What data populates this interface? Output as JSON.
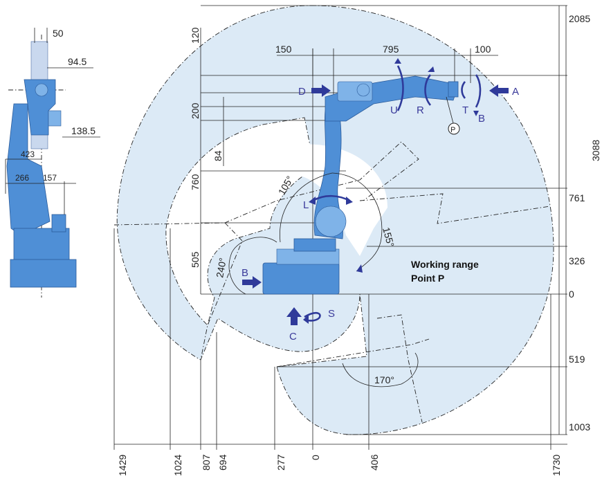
{
  "working_range": {
    "line1": "Working range",
    "line2": "Point P"
  },
  "point_label": "P",
  "axes": {
    "S": "S",
    "L": "L",
    "U": "U",
    "R": "R",
    "B": "B",
    "T": "T"
  },
  "view_labels": {
    "A": "A",
    "B": "B",
    "C": "C",
    "D": "D"
  },
  "angles": {
    "l_axis": "105°",
    "l_axis_back": "155°",
    "s_axis": "240°",
    "lower": "170°"
  },
  "side_view_dims": {
    "d50": "50",
    "d94_5": "94.5",
    "d138_5": "138.5",
    "d423": "423",
    "d266": "266",
    "d157": "157"
  },
  "top_dims": {
    "d150": "150",
    "d795": "795",
    "d100": "100"
  },
  "left_vertical_dims": {
    "d120": "120",
    "d200": "200",
    "d84": "84",
    "d760": "760",
    "d505": "505"
  },
  "right_vertical_dims": {
    "d2085": "2085",
    "d3088": "3088",
    "d761": "761",
    "d326": "326",
    "d0": "0",
    "d519": "519",
    "d1003": "1003"
  },
  "bottom_dims": {
    "d1429": "1429",
    "d1024": "1024",
    "d807": "807",
    "d694": "694",
    "d277": "277",
    "d0": "0",
    "d406": "406",
    "d1730": "1730"
  },
  "colors": {
    "range_fill": "#dceaf6",
    "robot": "#4f8fd6",
    "arrow": "#2f3a9a"
  }
}
